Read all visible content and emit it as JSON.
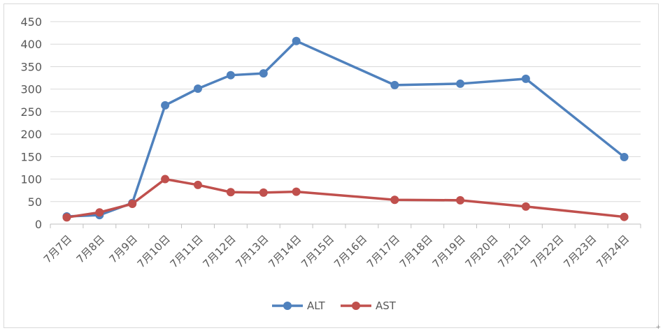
{
  "chart_data": {
    "type": "line",
    "categories": [
      "7月7日",
      "7月8日",
      "7月9日",
      "7月10日",
      "7月11日",
      "7月12日",
      "7月13日",
      "7月14日",
      "7月15日",
      "7月16日",
      "7月17日",
      "7月18日",
      "7月19日",
      "7月20日",
      "7月21日",
      "7月22日",
      "7月23日",
      "7月24日"
    ],
    "series": [
      {
        "name": "ALT",
        "color": "#4f81bd",
        "values": [
          17,
          20,
          47,
          264,
          301,
          331,
          335,
          407,
          null,
          null,
          309,
          null,
          312,
          null,
          323,
          null,
          null,
          149
        ]
      },
      {
        "name": "AST",
        "color": "#c0504d",
        "values": [
          15,
          26,
          45,
          100,
          87,
          71,
          70,
          72,
          null,
          null,
          54,
          null,
          53,
          null,
          39,
          null,
          null,
          16
        ]
      }
    ],
    "title": "",
    "xlabel": "",
    "ylabel": "",
    "ylim": [
      0,
      450
    ],
    "yticks": [
      "0",
      "50",
      "100",
      "150",
      "200",
      "250",
      "300",
      "350",
      "400",
      "450"
    ],
    "grid": "horizontal",
    "legend": "bottom"
  },
  "footer_mark": "+"
}
